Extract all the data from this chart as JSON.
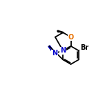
{
  "background_color": "#ffffff",
  "bond_color": "#000000",
  "double_bond_color": "#0000cc",
  "atom_colors": {
    "O": "#e87000",
    "N": "#0000cc",
    "Br": "#000000"
  },
  "bond_lw": 1.3,
  "font_size_atom": 7.0,
  "figsize": [
    1.52,
    1.52
  ],
  "dpi": 100
}
